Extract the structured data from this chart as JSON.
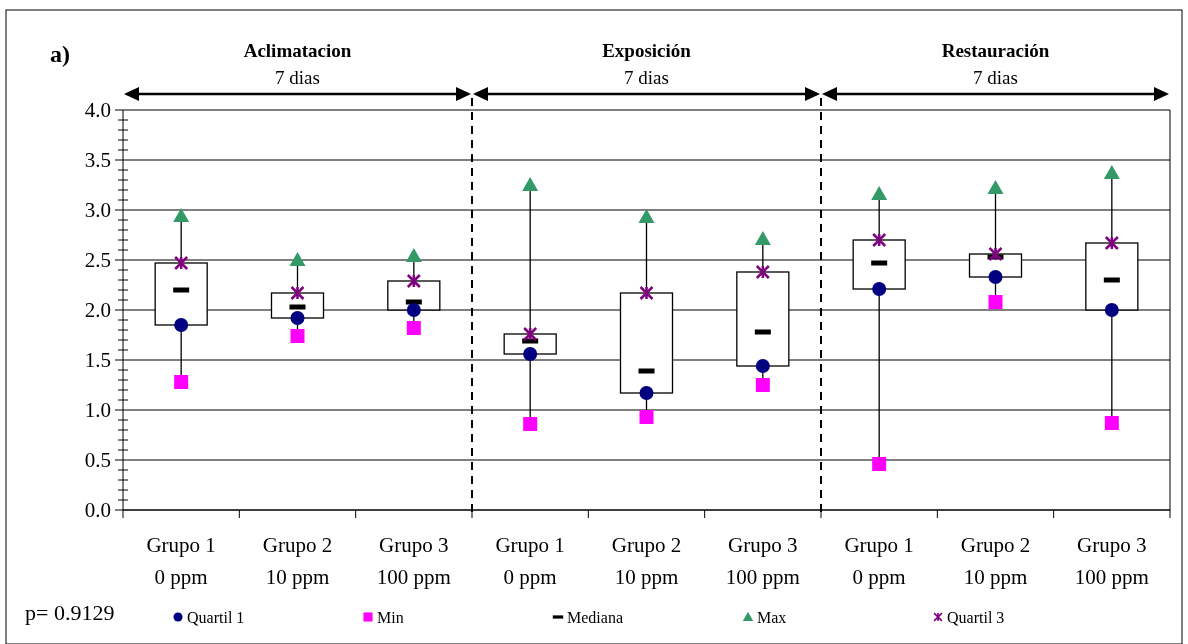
{
  "chart_data": {
    "type": "box",
    "categories": [
      "Grupo 1\n0 ppm",
      "Grupo 2\n10 ppm",
      "Grupo 3\n100 ppm",
      "Grupo 1\n0 ppm",
      "Grupo 2\n10 ppm",
      "Grupo 3\n100 ppm",
      "Grupo 1\n0 ppm",
      "Grupo 2\n10 ppm",
      "Grupo 3\n100 ppm"
    ],
    "series": [
      {
        "type": "scatter",
        "name": "Quartil 1",
        "color": "#000080",
        "marker": "circle",
        "values": [
          1.85,
          1.92,
          2.0,
          1.56,
          1.17,
          1.44,
          2.21,
          2.33,
          2.0
        ]
      },
      {
        "type": "scatter",
        "name": "Min",
        "color": "#ff00ff",
        "marker": "square",
        "values": [
          1.28,
          1.74,
          1.82,
          0.86,
          0.93,
          1.25,
          0.46,
          2.08,
          0.87
        ]
      },
      {
        "type": "box",
        "name": "Mediana",
        "color": "#000000",
        "boxes": [
          {
            "low": 1.28,
            "q1": 1.85,
            "median": 2.2,
            "q3": 2.47,
            "high": 2.94
          },
          {
            "low": 1.74,
            "q1": 1.92,
            "median": 2.03,
            "q3": 2.17,
            "high": 2.5
          },
          {
            "low": 1.82,
            "q1": 2.0,
            "median": 2.08,
            "q3": 2.29,
            "high": 2.54
          },
          {
            "low": 0.86,
            "q1": 1.56,
            "median": 1.69,
            "q3": 1.76,
            "high": 3.25
          },
          {
            "low": 0.93,
            "q1": 1.17,
            "median": 1.39,
            "q3": 2.17,
            "high": 2.93
          },
          {
            "low": 1.25,
            "q1": 1.44,
            "median": 1.78,
            "q3": 2.38,
            "high": 2.71
          },
          {
            "low": 0.46,
            "q1": 2.21,
            "median": 2.47,
            "q3": 2.7,
            "high": 3.16
          },
          {
            "low": 2.08,
            "q1": 2.33,
            "median": 2.53,
            "q3": 2.56,
            "high": 3.22
          },
          {
            "low": 0.87,
            "q1": 2.0,
            "median": 2.3,
            "q3": 2.67,
            "high": 3.37
          }
        ]
      },
      {
        "type": "scatter",
        "name": "Max",
        "color": "#339966",
        "marker": "triangle",
        "values": [
          2.94,
          2.5,
          2.54,
          3.25,
          2.93,
          2.71,
          3.16,
          3.22,
          3.37
        ]
      },
      {
        "type": "scatter",
        "name": "Quartil 3",
        "color": "#800080",
        "marker": "cross",
        "values": [
          2.47,
          2.17,
          2.29,
          1.76,
          2.17,
          2.38,
          2.7,
          2.56,
          2.67
        ]
      }
    ],
    "ylim": [
      0,
      4
    ],
    "yticks": [
      {
        "value": 0,
        "label": "0.0"
      },
      {
        "value": 0.1,
        "label": null
      },
      {
        "value": 0.2,
        "label": null
      },
      {
        "value": 0.3,
        "label": null
      },
      {
        "value": 0.4,
        "label": null
      },
      {
        "value": 0.5,
        "label": "0.5"
      },
      {
        "value": 0.6,
        "label": null
      },
      {
        "value": 0.7,
        "label": null
      },
      {
        "value": 0.8,
        "label": null
      },
      {
        "value": 0.9,
        "label": null
      },
      {
        "value": 1,
        "label": "1.0"
      },
      {
        "value": 1.1,
        "label": null
      },
      {
        "value": 1.2,
        "label": null
      },
      {
        "value": 1.3,
        "label": null
      },
      {
        "value": 1.4,
        "label": null
      },
      {
        "value": 1.5,
        "label": "1.5"
      },
      {
        "value": 1.6,
        "label": null
      },
      {
        "value": 1.7,
        "label": null
      },
      {
        "value": 1.8,
        "label": null
      },
      {
        "value": 1.9,
        "label": null
      },
      {
        "value": 2,
        "label": "2.0"
      },
      {
        "value": 2.1,
        "label": null
      },
      {
        "value": 2.2,
        "label": null
      },
      {
        "value": 2.3,
        "label": null
      },
      {
        "value": 2.4,
        "label": null
      },
      {
        "value": 2.5,
        "label": "2.5"
      },
      {
        "value": 2.6,
        "label": null
      },
      {
        "value": 2.7,
        "label": null
      },
      {
        "value": 2.8,
        "label": null
      },
      {
        "value": 2.9,
        "label": null
      },
      {
        "value": 3,
        "label": "3.0"
      },
      {
        "value": 3.1,
        "label": null
      },
      {
        "value": 3.2,
        "label": null
      },
      {
        "value": 3.3,
        "label": null
      },
      {
        "value": 3.4,
        "label": null
      },
      {
        "value": 3.5,
        "label": "3.5"
      },
      {
        "value": 3.6,
        "label": null
      },
      {
        "value": 3.7,
        "label": null
      },
      {
        "value": 3.8,
        "label": null
      },
      {
        "value": 3.9,
        "label": null
      },
      {
        "value": 4,
        "label": "4.0"
      }
    ],
    "grid": "y",
    "legend": "bottom",
    "annotations": [
      "a)",
      "p= 0.9129",
      "Aclimatacion",
      "7 dias",
      "Exposición",
      "7 dias",
      "Restauración",
      "7 dias"
    ]
  }
}
